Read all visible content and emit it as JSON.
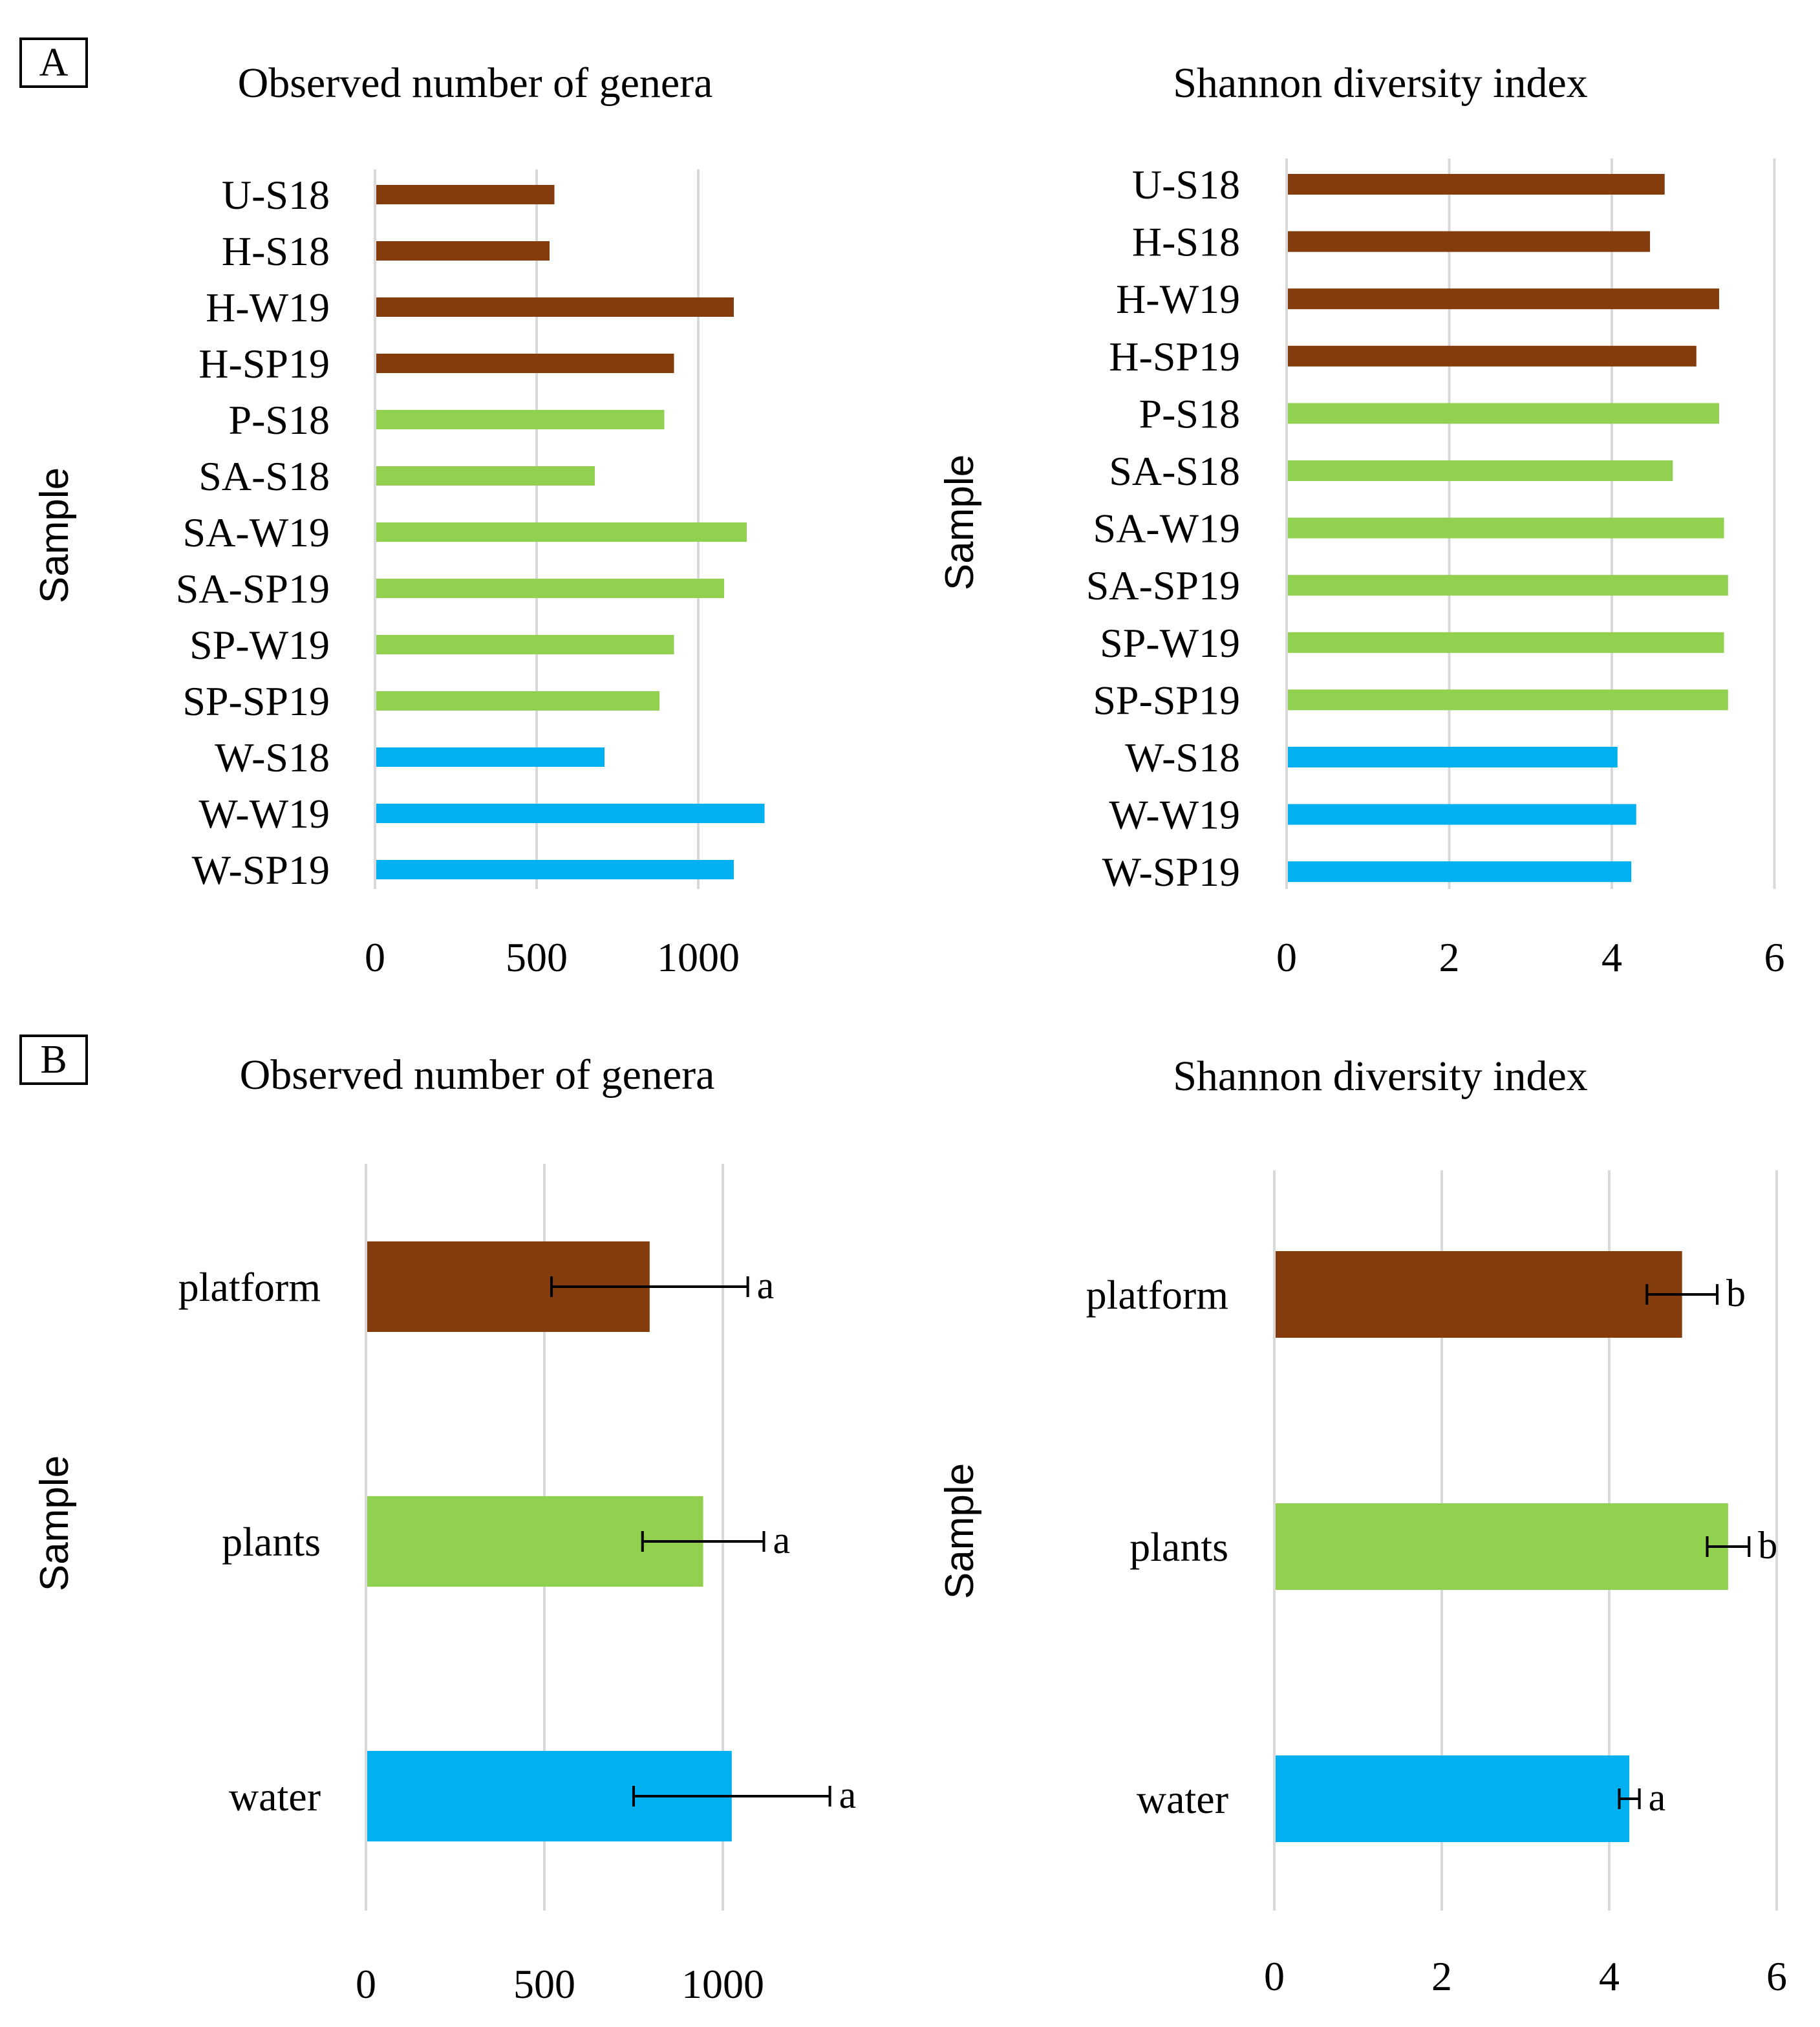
{
  "panels": {
    "a": "A",
    "b": "B"
  },
  "colors": {
    "platform": "#843c0c",
    "plants": "#92d050",
    "water": "#00b0f0"
  },
  "chart_data": [
    {
      "id": "A1",
      "type": "bar",
      "orientation": "horizontal",
      "title": "Observed number of genera",
      "xlabel": "",
      "ylabel": "Sample",
      "xlim": [
        0,
        1250
      ],
      "xticks": [
        0,
        500,
        1000
      ],
      "categories": [
        "U-S18",
        "H-S18",
        "H-W19",
        "H-SP19",
        "P-S18",
        "SA-S18",
        "SA-W19",
        "SA-SP19",
        "SP-W19",
        "SP-SP19",
        "W-S18",
        "W-W19",
        "W-SP19"
      ],
      "groups": [
        "platform",
        "platform",
        "platform",
        "platform",
        "plants",
        "plants",
        "plants",
        "plants",
        "plants",
        "plants",
        "water",
        "water",
        "water"
      ],
      "values": [
        555,
        540,
        1110,
        925,
        895,
        680,
        1150,
        1080,
        925,
        880,
        710,
        1205,
        1110
      ]
    },
    {
      "id": "A2",
      "type": "bar",
      "orientation": "horizontal",
      "title": "Shannon diversity index",
      "xlabel": "",
      "ylabel": "Sample",
      "xlim": [
        0,
        6
      ],
      "xticks": [
        0,
        2,
        4,
        6
      ],
      "categories": [
        "U-S18",
        "H-S18",
        "H-W19",
        "H-SP19",
        "P-S18",
        "SA-S18",
        "SA-W19",
        "SA-SP19",
        "SP-W19",
        "SP-SP19",
        "W-S18",
        "W-W19",
        "W-SP19"
      ],
      "groups": [
        "platform",
        "platform",
        "platform",
        "platform",
        "plants",
        "plants",
        "plants",
        "plants",
        "plants",
        "plants",
        "water",
        "water",
        "water"
      ],
      "values": [
        4.65,
        4.47,
        5.32,
        5.04,
        5.32,
        4.75,
        5.38,
        5.43,
        5.38,
        5.43,
        4.07,
        4.3,
        4.24
      ]
    },
    {
      "id": "B1",
      "type": "bar",
      "orientation": "horizontal",
      "title": "Observed number of genera",
      "xlabel": "",
      "ylabel": "Sample",
      "xlim": [
        0,
        1250
      ],
      "xticks": [
        0,
        500,
        1000
      ],
      "categories": [
        "platform",
        "plants",
        "water"
      ],
      "groups": [
        "platform",
        "plants",
        "water"
      ],
      "values": [
        795,
        945,
        1025
      ],
      "errors": [
        275,
        170,
        275
      ],
      "significance": [
        "a",
        "a",
        "a"
      ]
    },
    {
      "id": "B2",
      "type": "bar",
      "orientation": "horizontal",
      "title": "Shannon diversity index",
      "xlabel": "",
      "ylabel": "Sample",
      "xlim": [
        0,
        6
      ],
      "xticks": [
        0,
        2,
        4,
        6
      ],
      "categories": [
        "platform",
        "plants",
        "water"
      ],
      "groups": [
        "platform",
        "plants",
        "water"
      ],
      "values": [
        4.87,
        5.42,
        4.24
      ],
      "errors": [
        0.42,
        0.25,
        0.12
      ],
      "significance": [
        "b",
        "b",
        "a"
      ]
    }
  ]
}
